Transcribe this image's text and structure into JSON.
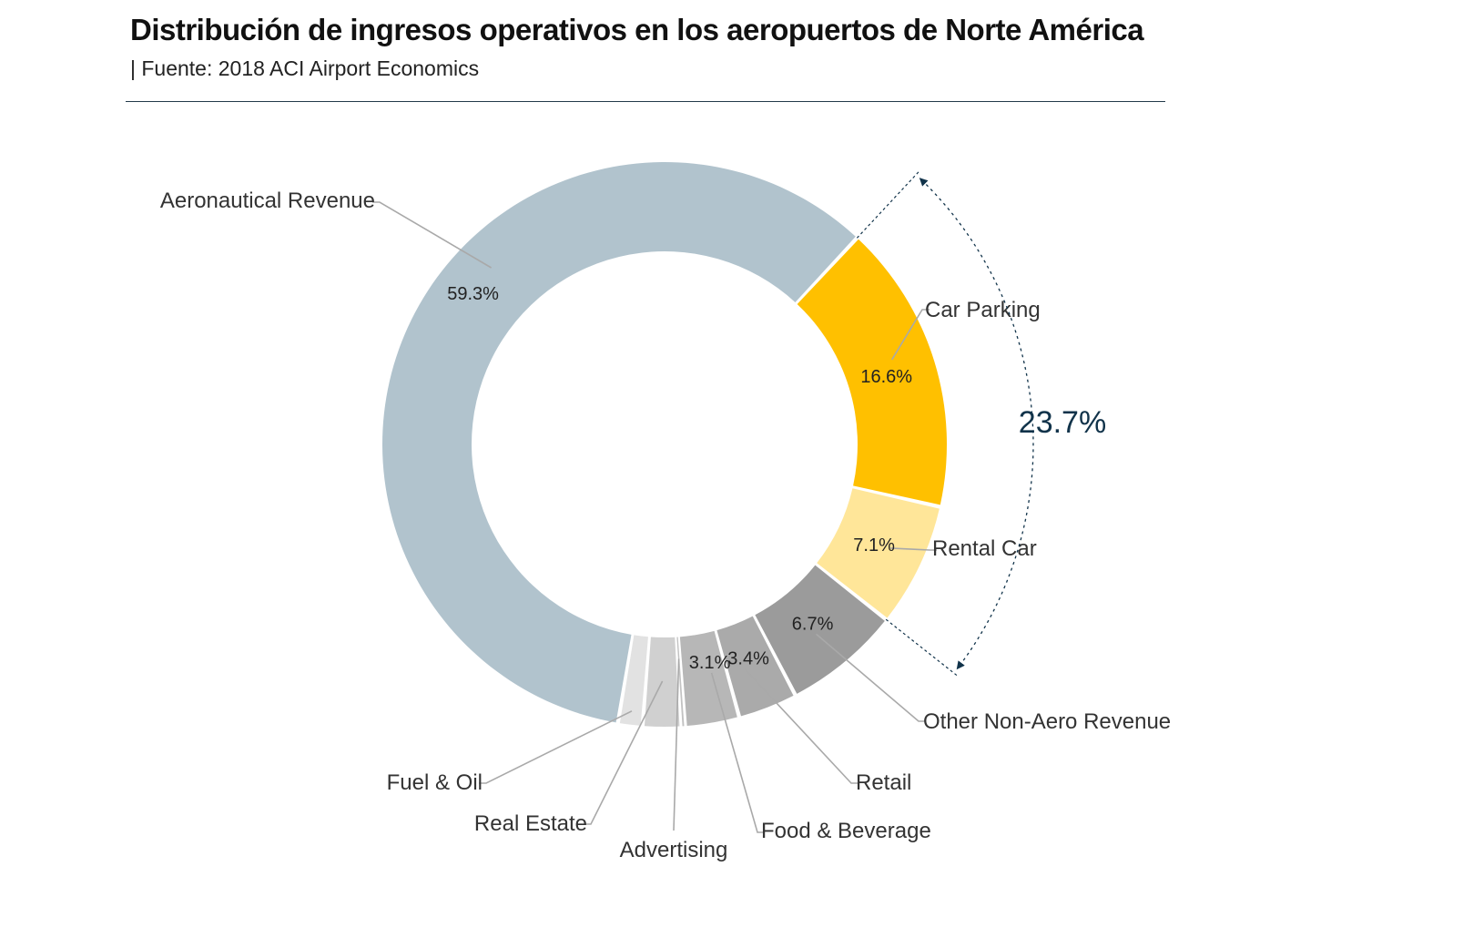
{
  "title": "Distribución de ingresos operativos en los aeropuertos de Norte América",
  "subtitle": "|  Fuente: 2018 ACI Airport Economics",
  "colors": {
    "aeronautical": "#b1c3cd",
    "car_parking": "#ffc000",
    "rental_car": "#ffe699",
    "other_non_aero": "#9b9b9b",
    "retail": "#aaaaaa",
    "food_beverage": "#b7b7b7",
    "advertising": "#c2c2c2",
    "real_estate": "#d0d0d0",
    "fuel_oil": "#e2e2e2",
    "bracket": "#11334a",
    "leader": "#a9a9a9"
  },
  "chart_data": {
    "type": "pie",
    "variant": "donut",
    "start_category": "Car Parking",
    "direction": "clockwise",
    "categories": [
      "Car Parking",
      "Rental Car",
      "Other Non-Aero Revenue",
      "Retail",
      "Food & Beverage",
      "Advertising",
      "Real Estate",
      "Fuel & Oil",
      "Aeronautical Revenue"
    ],
    "values": [
      16.6,
      7.1,
      6.7,
      3.4,
      3.1,
      0.2,
      2.2,
      1.4,
      59.3
    ],
    "value_labels": [
      "16.6%",
      "7.1%",
      "6.7%",
      "3.4%",
      "3.1%",
      "",
      "",
      "",
      "59.3%"
    ],
    "bracket": {
      "label": "23.7%",
      "categories": [
        "Car Parking",
        "Rental Car"
      ]
    }
  }
}
